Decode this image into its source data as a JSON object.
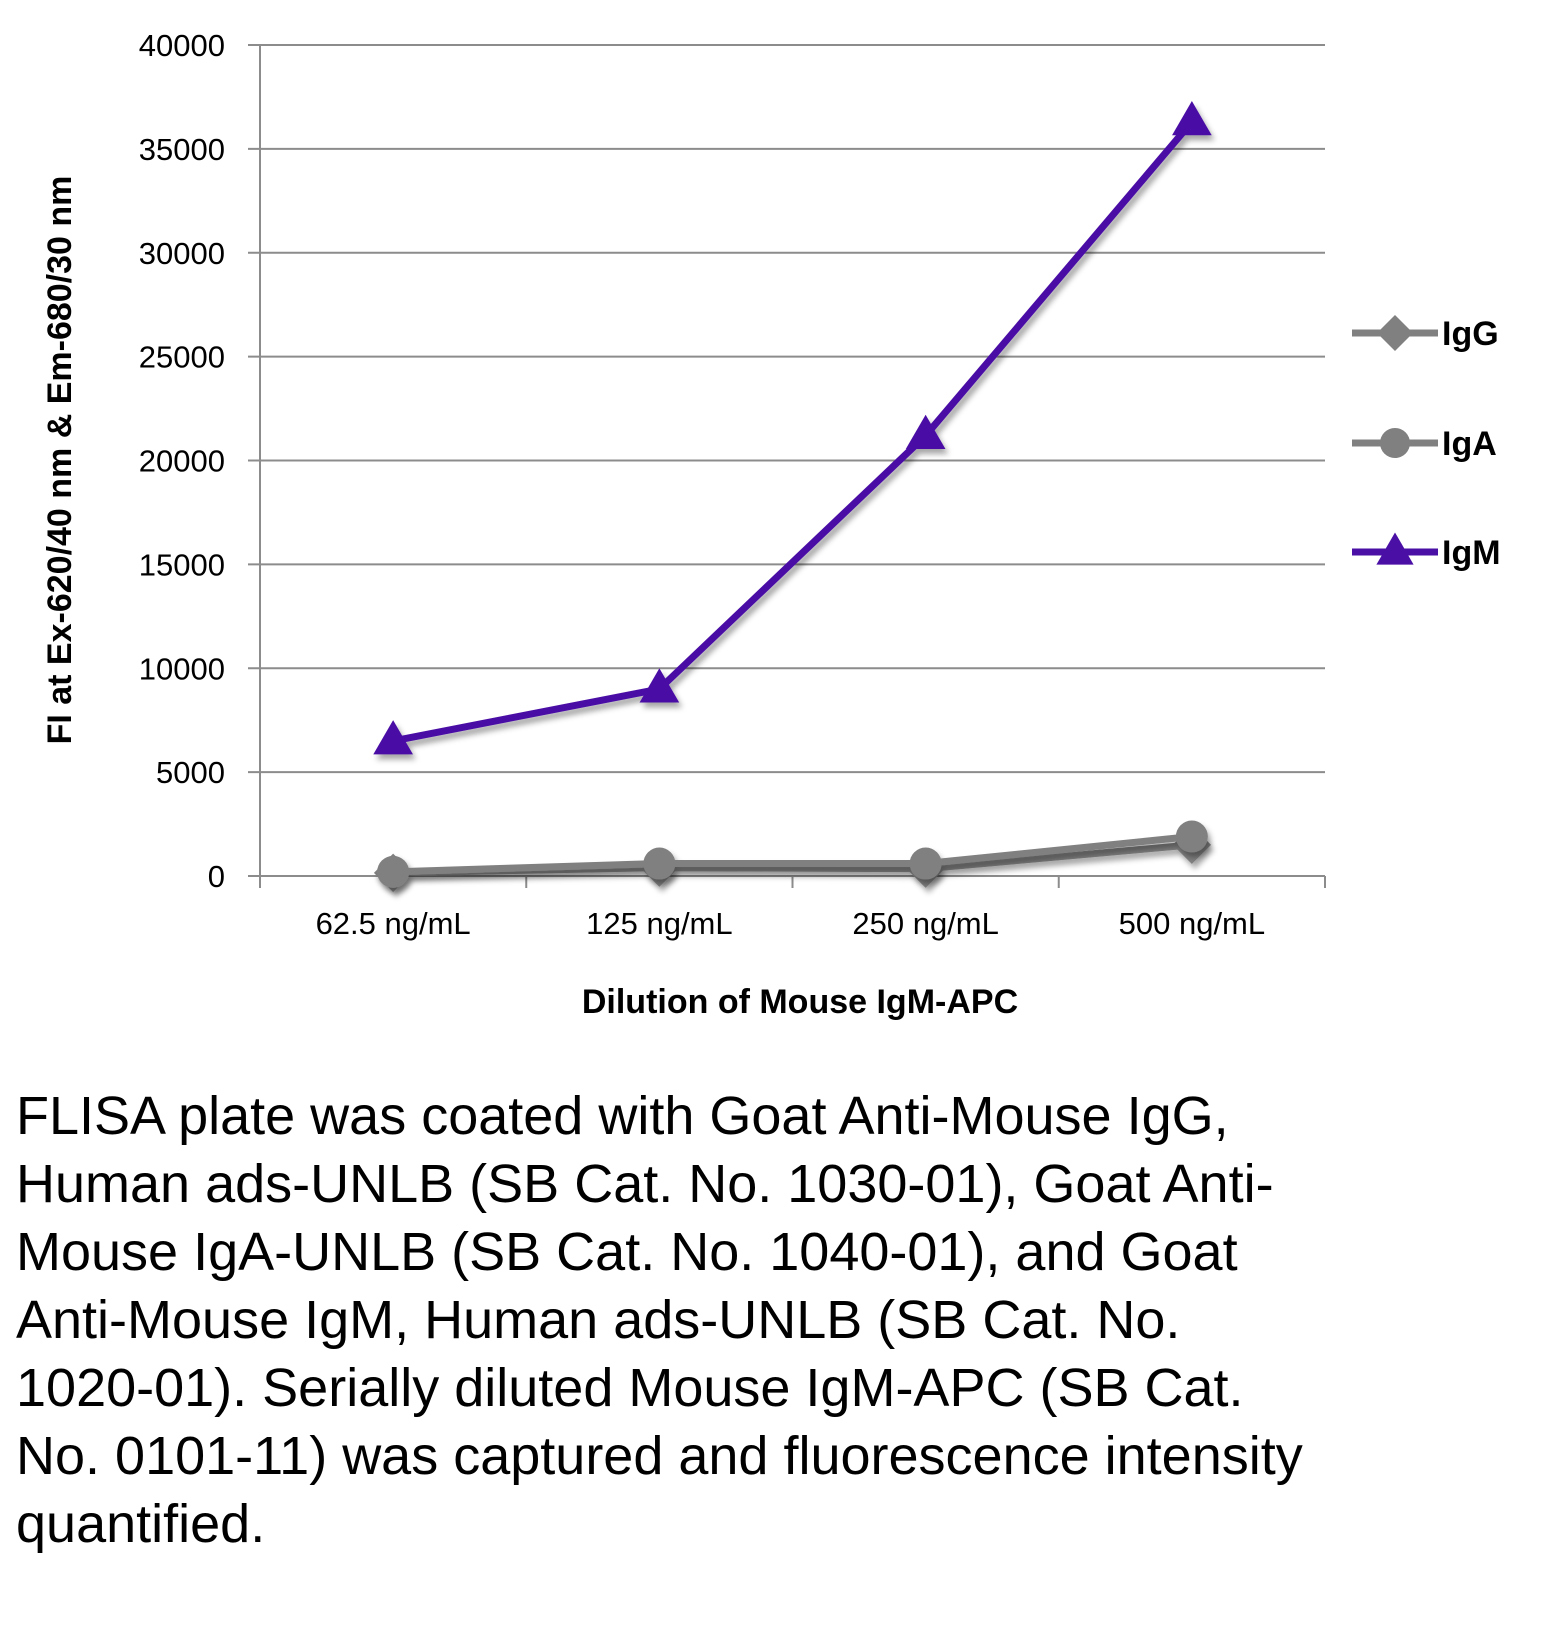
{
  "chart_data": {
    "type": "line",
    "title": "",
    "xlabel": "Dilution of Mouse IgM-APC",
    "ylabel": "FI at Ex-620/40 nm & Em-680/30 nm",
    "categories": [
      "62.5 ng/mL",
      "125 ng/mL",
      "250 ng/mL",
      "500 ng/mL"
    ],
    "ylim": [
      0,
      40000
    ],
    "yticks": [
      0,
      5000,
      10000,
      15000,
      20000,
      25000,
      30000,
      35000,
      40000
    ],
    "grid": true,
    "legend_position": "right",
    "series": [
      {
        "name": "IgG",
        "marker": "diamond",
        "color": "#808080",
        "values": [
          150,
          400,
          350,
          1500
        ]
      },
      {
        "name": "IgA",
        "marker": "circle",
        "color": "#808080",
        "values": [
          200,
          600,
          600,
          1900
        ]
      },
      {
        "name": "IgM",
        "marker": "triangle",
        "color": "#4a0fa5",
        "values": [
          6500,
          9000,
          21200,
          36300
        ]
      }
    ]
  },
  "caption": "FLISA plate was coated with Goat Anti-Mouse IgG, Human ads-UNLB (SB Cat. No. 1030-01), Goat Anti-Mouse IgA-UNLB (SB Cat. No. 1040-01), and Goat Anti-Mouse IgM, Human ads-UNLB (SB Cat. No. 1020-01). Serially diluted Mouse IgM-APC (SB Cat. No. 0101-11) was captured and fluorescence intensity quantified."
}
